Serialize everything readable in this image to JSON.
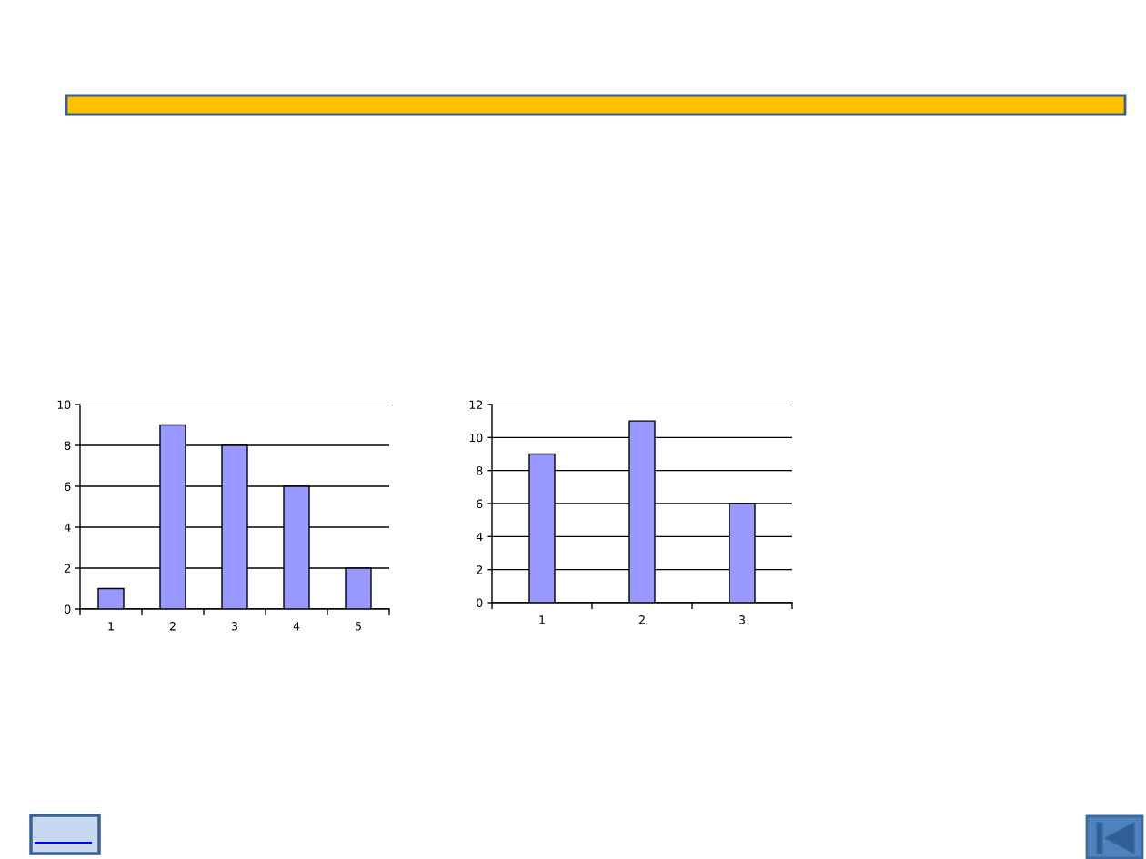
{
  "chart_data": [
    {
      "type": "bar",
      "categories": [
        "1",
        "2",
        "3",
        "4",
        "5"
      ],
      "values": [
        1,
        9,
        8,
        6,
        2
      ],
      "color": "#9999ff",
      "ylim": [
        0,
        10
      ],
      "yticks": [
        0,
        2,
        4,
        6,
        8,
        10
      ],
      "grid": "y"
    },
    {
      "type": "bar",
      "categories": [
        "1",
        "2",
        "3"
      ],
      "values": [
        9,
        11,
        6
      ],
      "color": "#9999ff",
      "ylim": [
        0,
        12
      ],
      "yticks": [
        0,
        2,
        4,
        6,
        8,
        10,
        12
      ],
      "grid": "y"
    }
  ]
}
